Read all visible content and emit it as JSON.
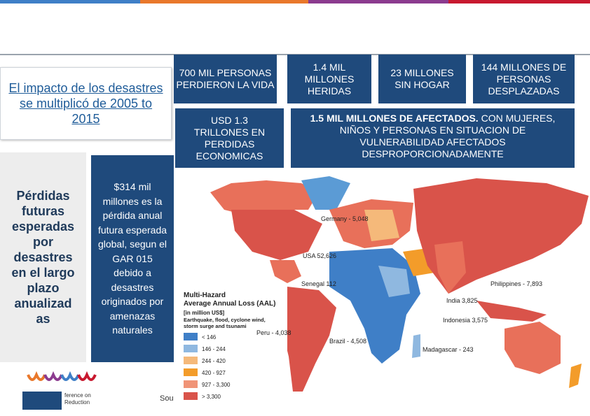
{
  "title": "El impacto de los desastres  se multiplicó de 2005 to 2015",
  "stats": [
    {
      "headline": "700 MIL PERSONAS",
      "detail": "PERDIERON LA VIDA"
    },
    {
      "headline": "1.4 MIL MILLONES",
      "detail": "HERIDAS"
    },
    {
      "headline": "23 MILLONES",
      "detail": "SIN HOGAR"
    },
    {
      "headline": "144 MILLONES DE PERSONAS",
      "detail": "DESPLAZADAS"
    },
    {
      "headline": "USD 1.3 TRILLONES EN PERDIDAS ECONOMICAS"
    },
    {
      "headline": "1.5 MIL MILLONES DE AFECTADOS.",
      "detail": " CON MUJERES, NIÑOS Y PERSONAS EN SITUACION DE VULNERABILIDAD AFECTADOS DESPROPORCIONADAMENTE"
    }
  ],
  "side": {
    "heading_lines": [
      "Pérdidas",
      "futuras",
      "esperadas",
      "por",
      "desastres",
      "en el largo",
      "plazo",
      "anualizad",
      "as"
    ],
    "note": "$314 mil millones es la pérdida anual futura esperada global, segun el GAR 015 debido a desastres originados por amenazas naturales"
  },
  "map": {
    "labels": [
      "Germany - 5,048",
      "USA 52,626",
      "Senegal 112",
      "Philippines - 7,893",
      "India 3,825",
      "Indonesia 3,575",
      "Peru - 4,038",
      "Brazil - 4,508",
      "Madagascar - 243"
    ],
    "legend": {
      "title_lines": [
        "Multi-Hazard",
        "Average Annual Loss (AAL)"
      ],
      "unit": "[in million US$]",
      "subtitle_lines": [
        "Earthquake, flood, cyclone wind,",
        "storm surge and tsunami"
      ],
      "classes": [
        "< 146",
        "146 - 244",
        "244 - 420",
        "420 - 927",
        "927 - 3,300",
        "> 3,300"
      ]
    }
  },
  "footer": {
    "source": "Sou",
    "logo_lines": [
      "ference on",
      "Reduction"
    ]
  }
}
